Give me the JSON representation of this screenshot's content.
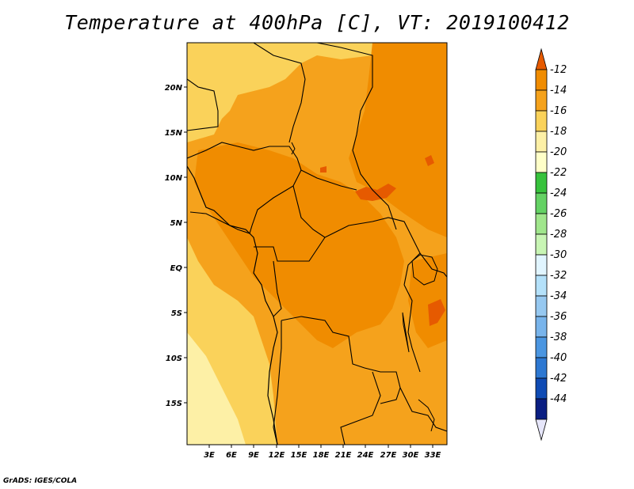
{
  "title": "Temperature at 400hPa [C], VT: 2019100412",
  "credit": "GrADS: IGES/COLA",
  "map": {
    "lon_labels": [
      "3E",
      "6E",
      "9E",
      "12E",
      "15E",
      "18E",
      "21E",
      "24E",
      "27E",
      "30E",
      "33E"
    ],
    "lat_labels": [
      "20N",
      "15N",
      "10N",
      "5N",
      "EQ",
      "5S",
      "10S",
      "15S"
    ]
  },
  "colorbar": {
    "labels": [
      "-12",
      "-14",
      "-16",
      "-18",
      "-20",
      "-22",
      "-24",
      "-26",
      "-28",
      "-30",
      "-32",
      "-34",
      "-36",
      "-38",
      "-40",
      "-42",
      "-44"
    ],
    "colors": [
      "#e65a00",
      "#f08c00",
      "#f5a21c",
      "#fad25a",
      "#fdf0a6",
      "#ffffc8",
      "#37c23c",
      "#64d264",
      "#a0e68c",
      "#c8f5b4",
      "#e1f5ff",
      "#b4e1fa",
      "#96c8f0",
      "#78b4eb",
      "#4b96e1",
      "#2d78d2",
      "#0f4bb4",
      "#0a1e82",
      "#e6e6fa"
    ]
  }
}
